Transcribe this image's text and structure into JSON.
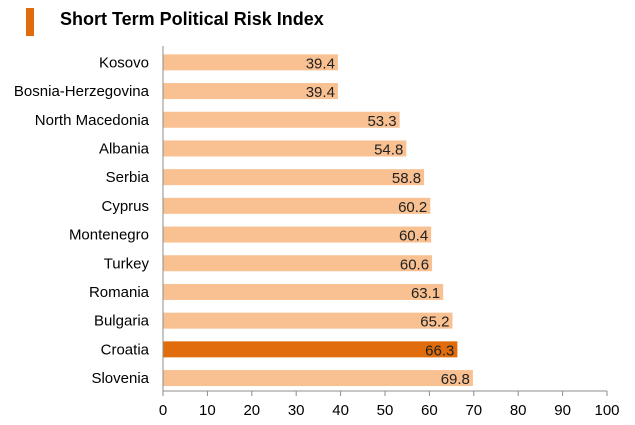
{
  "header": {
    "title": "Short Term Political Risk Index",
    "marker_color": "#E06C0C"
  },
  "chart_data": {
    "type": "bar",
    "orientation": "horizontal",
    "title": "Short Term Political Risk Index",
    "categories": [
      "Kosovo",
      "Bosnia-Herzegovina",
      "North Macedonia",
      "Albania",
      "Serbia",
      "Cyprus",
      "Montenegro",
      "Turkey",
      "Romania",
      "Bulgaria",
      "Croatia",
      "Slovenia"
    ],
    "values": [
      39.4,
      39.4,
      53.3,
      54.8,
      58.8,
      60.2,
      60.4,
      60.6,
      63.1,
      65.2,
      66.3,
      69.8
    ],
    "data_labels": [
      "39.4",
      "39.4",
      "53.3",
      "54.8",
      "58.8",
      "60.2",
      "60.4",
      "60.6",
      "63.1",
      "65.2",
      "66.3",
      "69.8"
    ],
    "highlight": "Croatia",
    "xlim": [
      0,
      100
    ],
    "xticks": [
      "0",
      "10",
      "20",
      "30",
      "40",
      "50",
      "60",
      "70",
      "80",
      "90",
      "100"
    ],
    "xlabel": "",
    "ylabel": "",
    "grid": false,
    "colors": {
      "bar": "#F9C091",
      "highlight": "#E06C0C",
      "axis": "#8C8C8C"
    }
  }
}
